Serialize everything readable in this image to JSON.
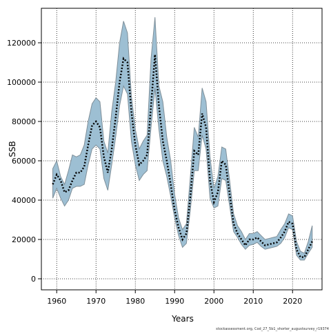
{
  "chart_data": {
    "type": "band-line",
    "y_label": "SSB",
    "x_label": "Years",
    "footnote": "stockassessment.org, Cod_27_5b1_shorter_augustsurvey_r19374",
    "x": [
      1959,
      1960,
      1961,
      1962,
      1963,
      1964,
      1965,
      1966,
      1967,
      1968,
      1969,
      1970,
      1971,
      1972,
      1973,
      1974,
      1975,
      1976,
      1977,
      1978,
      1979,
      1980,
      1981,
      1982,
      1983,
      1984,
      1985,
      1986,
      1987,
      1988,
      1989,
      1990,
      1991,
      1992,
      1993,
      1994,
      1995,
      1996,
      1997,
      1998,
      1999,
      2000,
      2001,
      2002,
      2003,
      2004,
      2005,
      2006,
      2007,
      2008,
      2009,
      2010,
      2011,
      2012,
      2013,
      2014,
      2015,
      2016,
      2017,
      2018,
      2019,
      2020,
      2021,
      2022,
      2023,
      2024,
      2025
    ],
    "values": [
      48000,
      53000,
      50000,
      44000,
      45000,
      50000,
      54000,
      54000,
      57000,
      68000,
      78000,
      80000,
      77000,
      62000,
      54000,
      66000,
      82000,
      100000,
      112000,
      110000,
      85000,
      68000,
      58000,
      60000,
      63000,
      88000,
      114000,
      88000,
      70000,
      60000,
      48000,
      35000,
      26000,
      20000,
      23000,
      42000,
      65000,
      63000,
      84000,
      77000,
      50000,
      39000,
      44000,
      60000,
      58000,
      43000,
      28000,
      23000,
      20000,
      17000,
      20000,
      20000,
      21000,
      19000,
      17000,
      17500,
      18000,
      18500,
      21000,
      24000,
      29000,
      28000,
      15000,
      11000,
      11000,
      15000,
      19000
    ],
    "upper": [
      56000,
      60000,
      52000,
      48000,
      55000,
      63000,
      62000,
      63000,
      68000,
      80000,
      89000,
      92000,
      90000,
      70000,
      64000,
      85000,
      100000,
      120000,
      131000,
      125000,
      93000,
      76000,
      66000,
      70000,
      73000,
      112000,
      133000,
      98000,
      90000,
      72000,
      60000,
      43000,
      31000,
      25000,
      28000,
      52000,
      77000,
      72000,
      97000,
      90000,
      62000,
      46000,
      52000,
      67000,
      66000,
      50000,
      33000,
      27000,
      24000,
      20000,
      23000,
      23000,
      24000,
      22000,
      20000,
      20500,
      21000,
      21500,
      25000,
      28000,
      33000,
      32000,
      19000,
      14000,
      13000,
      19000,
      27000
    ],
    "lower": [
      41000,
      46000,
      41000,
      37000,
      40000,
      46000,
      47000,
      47000,
      48000,
      58000,
      66000,
      68000,
      66000,
      51000,
      45000,
      58000,
      72000,
      88000,
      98000,
      94000,
      70000,
      58000,
      50000,
      53000,
      55000,
      77000,
      97000,
      76000,
      60000,
      52000,
      42000,
      31000,
      22000,
      16000,
      18000,
      35000,
      55000,
      55000,
      73000,
      66000,
      41000,
      36000,
      37000,
      51000,
      50000,
      37000,
      24000,
      21000,
      17500,
      15000,
      17000,
      17500,
      18500,
      16500,
      15000,
      15500,
      16000,
      16500,
      18000,
      21000,
      26000,
      25000,
      12000,
      9500,
      9500,
      13000,
      16000
    ],
    "band_color": "#9dbfd3",
    "band_edge": "#7f8f99",
    "line_color": "#000000",
    "xlim": [
      1956.1,
      2027.5
    ],
    "xticks": [
      1960,
      1970,
      1980,
      1990,
      2000,
      2010,
      2020
    ],
    "ylim": [
      -5614,
      137544
    ],
    "yticks": [
      0,
      20000,
      40000,
      60000,
      80000,
      100000,
      120000
    ],
    "grid": true
  }
}
